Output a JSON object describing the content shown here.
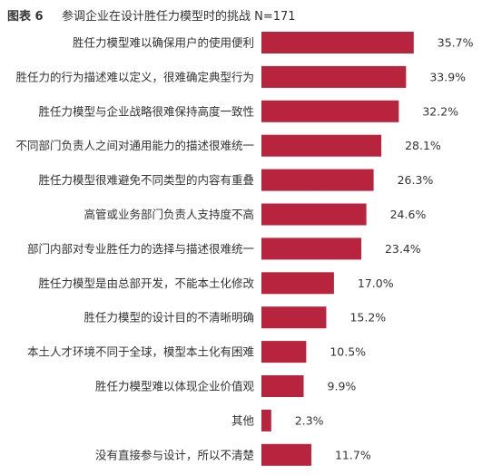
{
  "figure": {
    "label": "图表 6",
    "title": "参调企业在设计胜任力模型时的挑战 N=171"
  },
  "colors": {
    "bar": "#b8243e",
    "text": "#333333"
  },
  "chart_data": {
    "type": "bar",
    "orientation": "horizontal",
    "title": "参调企业在设计胜任力模型时的挑战 N=171",
    "unit": "%",
    "xlim": [
      0,
      40
    ],
    "grid": false,
    "legend": "none",
    "categories": [
      "胜任力模型难以确保用户的使用便利",
      "胜任力的行为描述难以定义，很难确定典型行为",
      "胜任力模型与企业战略很难保持高度一致性",
      "不同部门负责人之间对通用能力的描述很难统一",
      "胜任力模型很难避免不同类型的内容有重叠",
      "高管或业务部门负责人支持度不高",
      "部门内部对专业胜任力的选择与描述很难统一",
      "胜任力模型是由总部开发，不能本土化修改",
      "胜任力模型的设计目的不清晰明确",
      "本土人才环境不同于全球，模型本土化有困难",
      "胜任力模型难以体现企业价值观",
      "其他",
      "没有直接参与设计，所以不清楚"
    ],
    "values": [
      35.7,
      33.9,
      32.2,
      28.1,
      26.3,
      24.6,
      23.4,
      17.0,
      15.2,
      10.5,
      9.9,
      2.3,
      11.7
    ],
    "value_labels": [
      "35.7%",
      "33.9%",
      "32.2%",
      "28.1%",
      "26.3%",
      "24.6%",
      "23.4%",
      "17.0%",
      "15.2%",
      "10.5%",
      "9.9%",
      "2.3%",
      "11.7%"
    ]
  }
}
